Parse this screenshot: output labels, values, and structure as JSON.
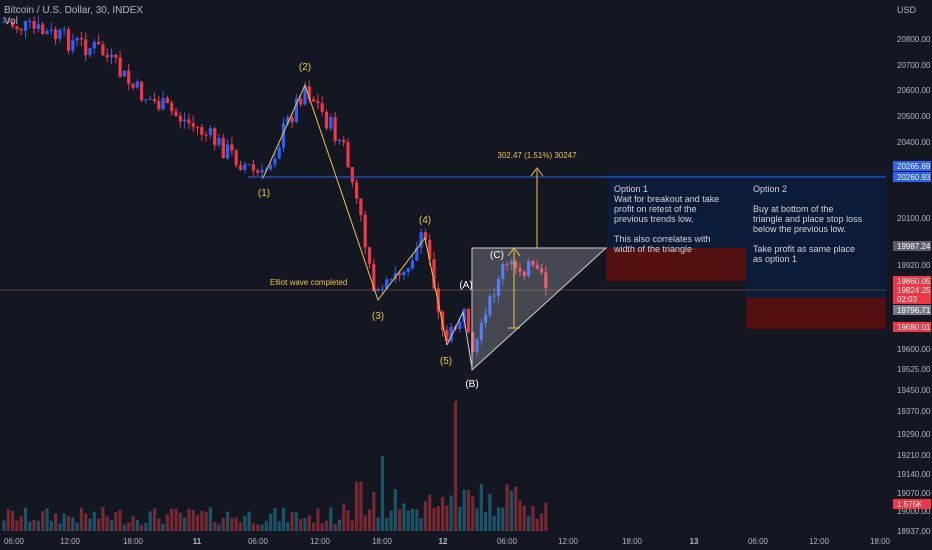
{
  "header": {
    "symbol_line": "Bitcoin / U.S. Dollar, 30, INDEX",
    "volume_label": "Vol",
    "currency": "USD"
  },
  "chart_data": {
    "type": "candlestick",
    "y_axis": {
      "ticks": [
        "20800.00",
        "20700.00",
        "20600.00",
        "20500.00",
        "20400.00",
        "20100.00",
        "19920.00",
        "19600.00",
        "19525.00",
        "19450.00",
        "19370.00",
        "19290.00",
        "19210.00",
        "19140.00",
        "19070.00",
        "19000.00",
        "18937.00"
      ],
      "price_tags": [
        {
          "label": "20265.69",
          "color": "#2962ff"
        },
        {
          "label": "20260.93",
          "color": "#2962ff"
        },
        {
          "label": "19987.24",
          "color": "#5d606b"
        },
        {
          "label": "19860.05",
          "color": "#f23645"
        },
        {
          "label": "19824.25",
          "color": "#f23645"
        },
        {
          "label": "02:03",
          "color": "#f23645"
        },
        {
          "label": "19796.71",
          "color": "#787b86"
        },
        {
          "label": "19680.01",
          "color": "#f23645"
        },
        {
          "label": "1.575K",
          "color": "#f23645"
        }
      ]
    },
    "x_axis": {
      "ticks": [
        "06:00",
        "12:00",
        "18:00",
        "11",
        "06:00",
        "12:00",
        "18:00",
        "12",
        "06:00",
        "12:00",
        "18:00",
        "13",
        "06:00",
        "12:00",
        "18:00"
      ]
    },
    "annotations": {
      "wave_labels": [
        "(1)",
        "(2)",
        "(3)",
        "(4)",
        "(5)",
        "(A)",
        "(B)",
        "(C)"
      ],
      "wave_text": "Elliot wave completed",
      "measure_label": "302.47 (1.51%) 30247",
      "option1": "Option 1\nWait for breakout and take\nprofit on retest of the\nprevious trends low.\n\nThis also correlates with\nwidth of the triangle",
      "option2": "Option 2\n\nBuy at bottom of the\ntriangle and place stop loss\nbelow the previous low.\n\nTake profit as same place\nas option 1"
    },
    "colors": {
      "up": "#2962ff",
      "down": "#f23645",
      "wave": "#f0c342",
      "background": "#131722"
    }
  }
}
